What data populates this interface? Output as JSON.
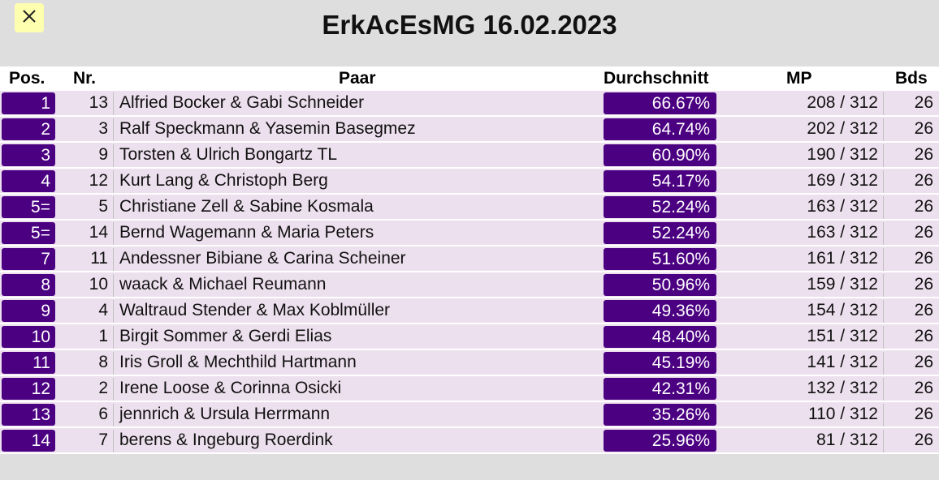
{
  "title": "ErkAcEsMG 16.02.2023",
  "close_label": "✕",
  "headers": {
    "pos": "Pos.",
    "nr": "Nr.",
    "paar": "Paar",
    "avg": "Durchschnitt",
    "mp": "MP",
    "bds": "Bds"
  },
  "rows": [
    {
      "pos": "1",
      "nr": "13",
      "name": "Alfried Bocker & Gabi Schneider",
      "avg": "66.67%",
      "mp": "208 / 312",
      "bds": "26"
    },
    {
      "pos": "2",
      "nr": "3",
      "name": "Ralf Speckmann & Yasemin Basegmez",
      "avg": "64.74%",
      "mp": "202 / 312",
      "bds": "26"
    },
    {
      "pos": "3",
      "nr": "9",
      "name": "Torsten & Ulrich Bongartz TL",
      "avg": "60.90%",
      "mp": "190 / 312",
      "bds": "26"
    },
    {
      "pos": "4",
      "nr": "12",
      "name": "Kurt Lang & Christoph Berg",
      "avg": "54.17%",
      "mp": "169 / 312",
      "bds": "26"
    },
    {
      "pos": "5=",
      "nr": "5",
      "name": "Christiane Zell & Sabine Kosmala",
      "avg": "52.24%",
      "mp": "163 / 312",
      "bds": "26"
    },
    {
      "pos": "5=",
      "nr": "14",
      "name": "Bernd Wagemann & Maria Peters",
      "avg": "52.24%",
      "mp": "163 / 312",
      "bds": "26"
    },
    {
      "pos": "7",
      "nr": "11",
      "name": "Andessner Bibiane & Carina Scheiner",
      "avg": "51.60%",
      "mp": "161 / 312",
      "bds": "26"
    },
    {
      "pos": "8",
      "nr": "10",
      "name": "waack & Michael Reumann",
      "avg": "50.96%",
      "mp": "159 / 312",
      "bds": "26"
    },
    {
      "pos": "9",
      "nr": "4",
      "name": "Waltraud Stender & Max Koblmüller",
      "avg": "49.36%",
      "mp": "154 / 312",
      "bds": "26"
    },
    {
      "pos": "10",
      "nr": "1",
      "name": "Birgit Sommer & Gerdi Elias",
      "avg": "48.40%",
      "mp": "151 / 312",
      "bds": "26"
    },
    {
      "pos": "11",
      "nr": "8",
      "name": "Iris Groll & Mechthild Hartmann",
      "avg": "45.19%",
      "mp": "141 / 312",
      "bds": "26"
    },
    {
      "pos": "12",
      "nr": "2",
      "name": "Irene Loose & Corinna Osicki",
      "avg": "42.31%",
      "mp": "132 / 312",
      "bds": "26"
    },
    {
      "pos": "13",
      "nr": "6",
      "name": "jennrich & Ursula Herrmann",
      "avg": "35.26%",
      "mp": "110 / 312",
      "bds": "26"
    },
    {
      "pos": "14",
      "nr": "7",
      "name": "berens & Ingeburg Roerdink",
      "avg": "25.96%",
      "mp": "81 / 312",
      "bds": "26"
    }
  ],
  "colors": {
    "accent": "#4b0082",
    "row_bg": "#ede0ee",
    "close_bg": "#ffffb0"
  }
}
